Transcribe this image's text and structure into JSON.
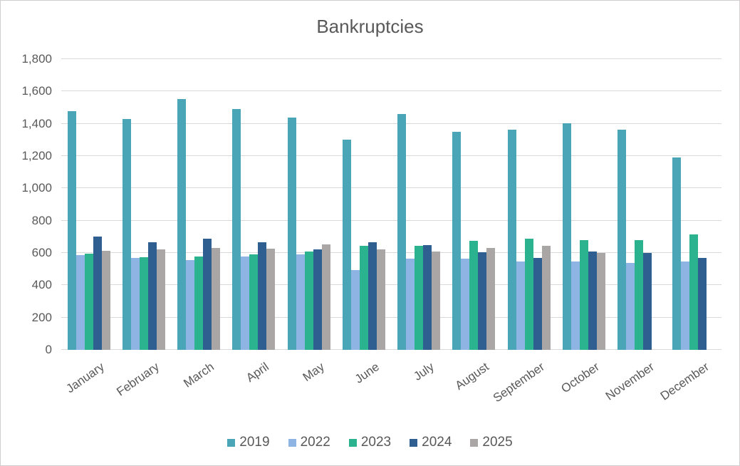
{
  "chart_data": {
    "type": "bar",
    "title": "Bankruptcies",
    "categories": [
      "January",
      "February",
      "March",
      "April",
      "May",
      "June",
      "July",
      "August",
      "September",
      "October",
      "November",
      "December"
    ],
    "series": [
      {
        "name": "2019",
        "color": "#4AA6B6",
        "values": [
          1480,
          1430,
          1555,
          1490,
          1440,
          1300,
          1460,
          1350,
          1365,
          1405,
          1365,
          1190
        ]
      },
      {
        "name": "2022",
        "color": "#8EB4E3",
        "values": [
          585,
          570,
          555,
          580,
          590,
          495,
          565,
          565,
          545,
          545,
          540,
          545
        ]
      },
      {
        "name": "2023",
        "color": "#2BB28E",
        "values": [
          595,
          575,
          580,
          590,
          610,
          645,
          645,
          675,
          690,
          680,
          680,
          715
        ]
      },
      {
        "name": "2024",
        "color": "#2F5E90",
        "values": [
          700,
          665,
          690,
          665,
          620,
          665,
          650,
          605,
          570,
          610,
          600,
          570
        ]
      },
      {
        "name": "2025",
        "color": "#ABA6A6",
        "values": [
          615,
          620,
          630,
          625,
          655,
          620,
          610,
          630,
          645,
          600,
          null,
          null
        ]
      }
    ],
    "ylim": [
      0,
      1800
    ],
    "ytick_step": 200,
    "ytick_labels": [
      "0",
      "200",
      "400",
      "600",
      "800",
      "1,000",
      "1,200",
      "1,400",
      "1,600",
      "1,800"
    ],
    "legend_position": "bottom",
    "grid": true,
    "colors": {
      "text": "#595959",
      "gridline": "#d9d9d9",
      "border": "#d0cece",
      "background": "#ffffff"
    }
  }
}
